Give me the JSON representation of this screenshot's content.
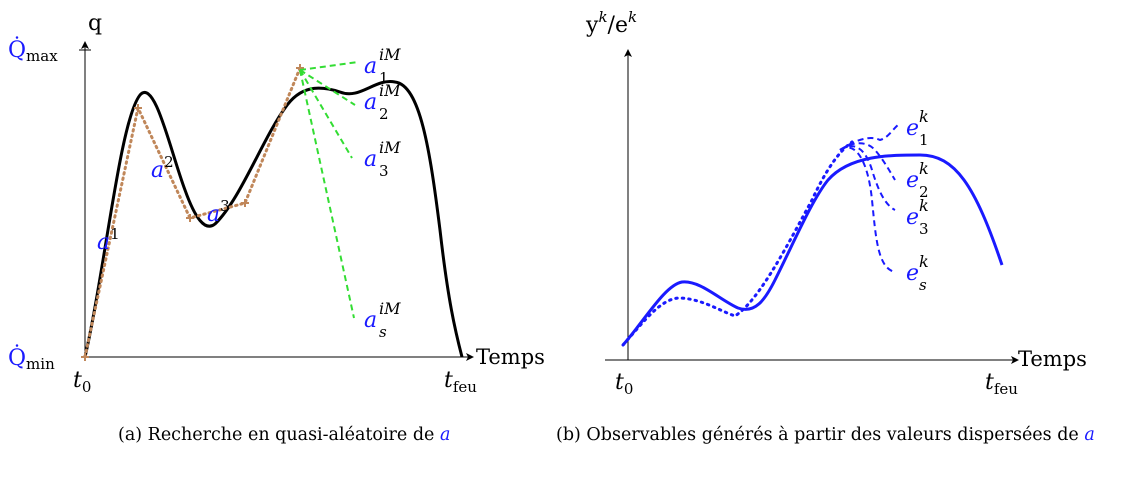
{
  "panel_a": {
    "y_axis_label": "q",
    "y_max_label": "Q̇",
    "y_max_sub": "max",
    "y_min_label": "Q̇",
    "y_min_sub": "min",
    "x_axis_label": "Temps",
    "x_start_label": "t",
    "x_start_sub": "0",
    "x_end_label": "t",
    "x_end_sub": "feu",
    "point_labels": [
      {
        "base": "a",
        "sup": "1"
      },
      {
        "base": "a",
        "sup": "2"
      },
      {
        "base": "a",
        "sup": "3"
      }
    ],
    "candidate_labels": [
      {
        "base": "a",
        "sub": "1",
        "sup": "iM"
      },
      {
        "base": "a",
        "sub": "2",
        "sup": "iM"
      },
      {
        "base": "a",
        "sub": "3",
        "sup": "iM"
      },
      {
        "base": "a",
        "sub": "s",
        "sup": "iM"
      }
    ],
    "caption_prefix": "(a) Recherche en quasi-aléatoire de ",
    "caption_symbol": "a",
    "colors": {
      "curve": "#000000",
      "dotted": "#c0875a",
      "dashed": "#33dd33",
      "label": "#1a1aff"
    }
  },
  "panel_b": {
    "y_axis_label_y": "y",
    "y_axis_sup1": "k",
    "y_axis_sep": "/e",
    "y_axis_sup2": "k",
    "x_axis_label": "Temps",
    "x_start_label": "t",
    "x_start_sub": "0",
    "x_end_label": "t",
    "x_end_sub": "feu",
    "curve_labels": [
      {
        "base": "e",
        "sub": "1",
        "sup": "k"
      },
      {
        "base": "e",
        "sub": "2",
        "sup": "k"
      },
      {
        "base": "e",
        "sub": "3",
        "sup": "k"
      },
      {
        "base": "e",
        "sub": "s",
        "sup": "k"
      }
    ],
    "caption_prefix": "(b) Observables générés à partir des valeurs dispersées de ",
    "caption_symbol": "a",
    "colors": {
      "curve": "#1a1aff"
    }
  }
}
